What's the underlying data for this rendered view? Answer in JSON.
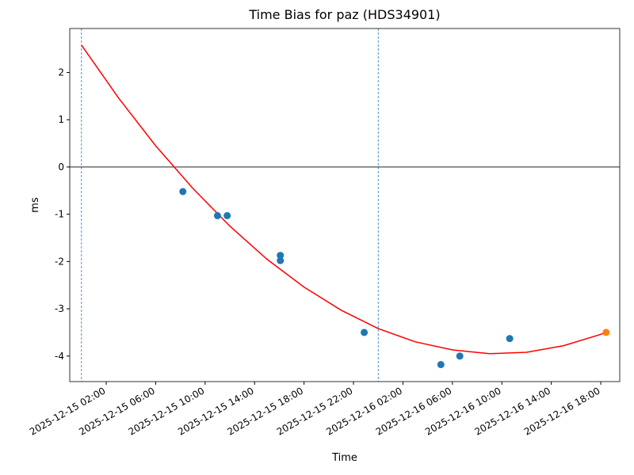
{
  "chart_data": {
    "type": "scatter",
    "title": "Time Bias for paz (HDS34901)",
    "xlabel": "Time",
    "ylabel": "ms",
    "xlim": [
      "2025-12-14 23:03",
      "2025-12-16 19:32"
    ],
    "ylim": [
      -4.54,
      2.93
    ],
    "xticks": [
      "2025-12-15 02:00",
      "2025-12-15 06:00",
      "2025-12-15 10:00",
      "2025-12-15 14:00",
      "2025-12-15 18:00",
      "2025-12-15 22:00",
      "2025-12-16 02:00",
      "2025-12-16 06:00",
      "2025-12-16 10:00",
      "2025-12-16 14:00",
      "2025-12-16 18:00"
    ],
    "yticks": [
      -4,
      -3,
      -2,
      -1,
      0,
      1,
      2
    ],
    "hline": 0,
    "hline_color": "#000000",
    "vlines": [
      "2025-12-15 00:00",
      "2025-12-16 00:00"
    ],
    "vline_color": "#1f77b4",
    "series": [
      {
        "color": "#1f77b4",
        "x": [
          "2025-12-15 08:12",
          "2025-12-15 11:00",
          "2025-12-15 11:47",
          "2025-12-15 16:05",
          "2025-12-15 16:05",
          "2025-12-15 22:52",
          "2025-12-16 05:04",
          "2025-12-16 06:36",
          "2025-12-16 10:38"
        ],
        "values": [
          -0.52,
          -1.03,
          -1.03,
          -1.87,
          -1.98,
          -3.5,
          -4.18,
          -4.0,
          -3.63
        ]
      },
      {
        "color": "#ff7f0e",
        "x": [
          "2025-12-16 18:26"
        ],
        "values": [
          -3.5
        ]
      }
    ],
    "curve": {
      "color": "#ff0000",
      "x": [
        "2025-12-15 00:00",
        "2025-12-15 03:00",
        "2025-12-15 06:00",
        "2025-12-15 09:00",
        "2025-12-15 12:00",
        "2025-12-15 15:00",
        "2025-12-15 18:00",
        "2025-12-15 21:00",
        "2025-12-16 00:00",
        "2025-12-16 03:00",
        "2025-12-16 06:00",
        "2025-12-16 09:00",
        "2025-12-16 12:00",
        "2025-12-16 15:00",
        "2025-12-16 18:00",
        "2025-12-16 18:26"
      ],
      "values": [
        2.58,
        1.46,
        0.45,
        -0.45,
        -1.25,
        -1.95,
        -2.54,
        -3.03,
        -3.42,
        -3.7,
        -3.87,
        -3.95,
        -3.92,
        -3.78,
        -3.54,
        -3.5
      ]
    }
  }
}
